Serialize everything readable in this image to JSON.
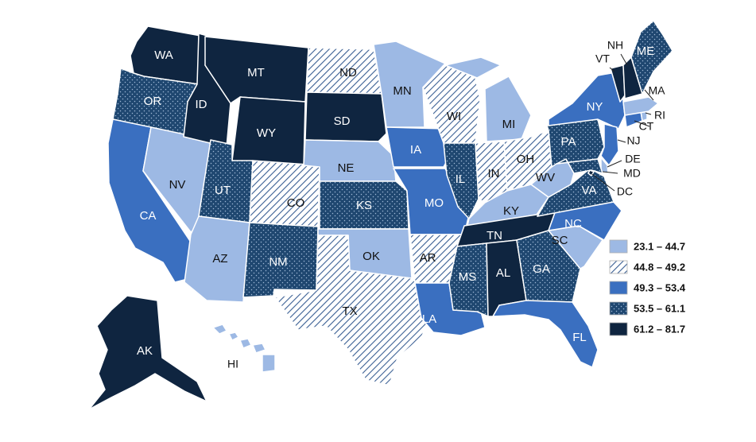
{
  "colors": {
    "c1": "#9db9e4",
    "c2_line": "#3a5f94",
    "c3": "#3a6fc0",
    "c4": "#1f4770",
    "c5": "#0f2540",
    "label_dark": "#111111",
    "label_light": "#ffffff"
  },
  "legend": [
    {
      "id": "c1",
      "label": "23.1 – 44.7",
      "pattern": "solid-light"
    },
    {
      "id": "c2",
      "label": "44.8 – 49.2",
      "pattern": "diagonal-hatch"
    },
    {
      "id": "c3",
      "label": "49.3 – 53.4",
      "pattern": "solid-medium"
    },
    {
      "id": "c4",
      "label": "53.5 – 61.1",
      "pattern": "dotted-dark"
    },
    {
      "id": "c5",
      "label": "61.2 – 81.7",
      "pattern": "solid-navy"
    }
  ],
  "states": [
    {
      "abbr": "WA",
      "class": "c5"
    },
    {
      "abbr": "OR",
      "class": "c4"
    },
    {
      "abbr": "CA",
      "class": "c3"
    },
    {
      "abbr": "NV",
      "class": "c1"
    },
    {
      "abbr": "ID",
      "class": "c5"
    },
    {
      "abbr": "MT",
      "class": "c5"
    },
    {
      "abbr": "WY",
      "class": "c5"
    },
    {
      "abbr": "UT",
      "class": "c4"
    },
    {
      "abbr": "AZ",
      "class": "c1"
    },
    {
      "abbr": "CO",
      "class": "c2"
    },
    {
      "abbr": "NM",
      "class": "c4"
    },
    {
      "abbr": "ND",
      "class": "c2"
    },
    {
      "abbr": "SD",
      "class": "c5"
    },
    {
      "abbr": "NE",
      "class": "c1"
    },
    {
      "abbr": "KS",
      "class": "c4"
    },
    {
      "abbr": "OK",
      "class": "c1"
    },
    {
      "abbr": "TX",
      "class": "c2"
    },
    {
      "abbr": "MN",
      "class": "c1"
    },
    {
      "abbr": "IA",
      "class": "c3"
    },
    {
      "abbr": "MO",
      "class": "c3"
    },
    {
      "abbr": "AR",
      "class": "c2"
    },
    {
      "abbr": "LA",
      "class": "c3"
    },
    {
      "abbr": "WI",
      "class": "c2"
    },
    {
      "abbr": "IL",
      "class": "c4"
    },
    {
      "abbr": "MI",
      "class": "c1"
    },
    {
      "abbr": "IN",
      "class": "c2"
    },
    {
      "abbr": "OH",
      "class": "c2"
    },
    {
      "abbr": "KY",
      "class": "c1"
    },
    {
      "abbr": "TN",
      "class": "c5"
    },
    {
      "abbr": "MS",
      "class": "c4"
    },
    {
      "abbr": "AL",
      "class": "c5"
    },
    {
      "abbr": "GA",
      "class": "c4"
    },
    {
      "abbr": "FL",
      "class": "c3"
    },
    {
      "abbr": "SC",
      "class": "c1"
    },
    {
      "abbr": "NC",
      "class": "c3"
    },
    {
      "abbr": "VA",
      "class": "c4"
    },
    {
      "abbr": "WV",
      "class": "c1"
    },
    {
      "abbr": "PA",
      "class": "c4"
    },
    {
      "abbr": "NY",
      "class": "c3"
    },
    {
      "abbr": "ME",
      "class": "c4"
    },
    {
      "abbr": "NH",
      "class": "c5"
    },
    {
      "abbr": "VT",
      "class": "c5"
    },
    {
      "abbr": "MA",
      "class": "c1"
    },
    {
      "abbr": "RI",
      "class": "c1"
    },
    {
      "abbr": "CT",
      "class": "c3"
    },
    {
      "abbr": "NJ",
      "class": "c3"
    },
    {
      "abbr": "DE",
      "class": "c1"
    },
    {
      "abbr": "MD",
      "class": "c4"
    },
    {
      "abbr": "DC",
      "class": "c5"
    },
    {
      "abbr": "AK",
      "class": "c5"
    },
    {
      "abbr": "HI",
      "class": "c1"
    }
  ]
}
